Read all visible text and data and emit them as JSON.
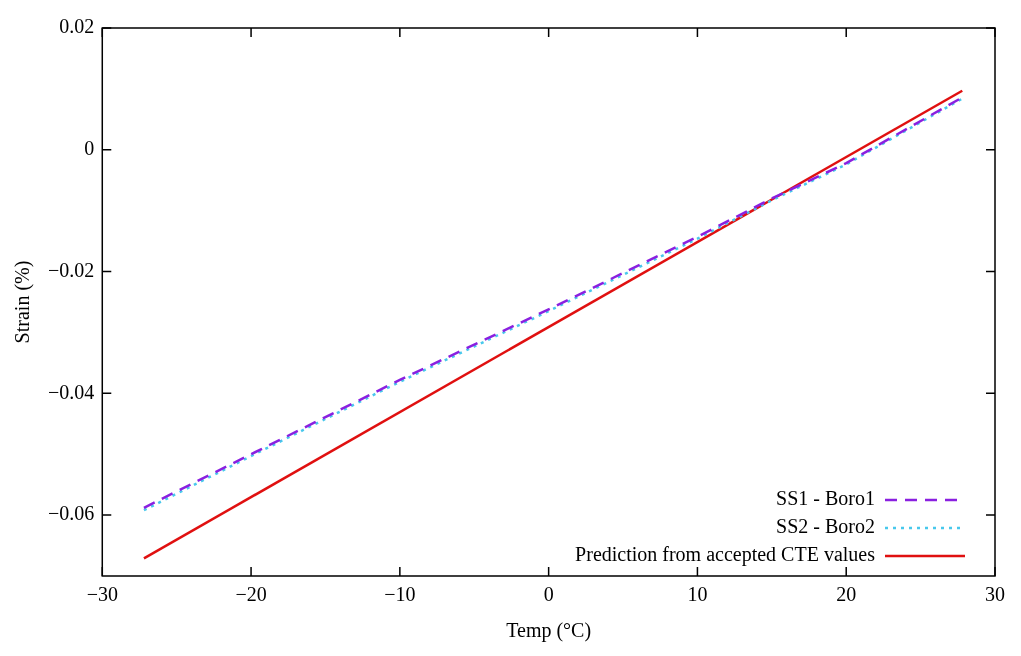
{
  "chart_data": {
    "type": "line",
    "xlabel": "Temp (°C)",
    "ylabel": "Strain (%)",
    "xlim": [
      -30,
      30
    ],
    "xticks": [
      {
        "value": -30,
        "label": "−30"
      },
      {
        "value": -20,
        "label": "−20"
      },
      {
        "value": -10,
        "label": "−10"
      },
      0,
      10,
      20,
      30
    ],
    "ylim": [
      -0.07,
      0.02
    ],
    "yticks": [
      {
        "value": -0.06,
        "label": "−0.06"
      },
      {
        "value": -0.04,
        "label": "−0.04"
      },
      {
        "value": -0.02,
        "label": "−0.02"
      },
      0,
      0.02
    ],
    "grid": false,
    "legend": "bottom right",
    "marker": "none",
    "series": [
      {
        "name": "SS1 - Boro1",
        "color": "#8a20e0",
        "line_style": "dashed",
        "x": [
          -27.2,
          -20,
          -10,
          0,
          10,
          15,
          20,
          27.8
        ],
        "values": [
          -0.0588,
          -0.05,
          -0.0378,
          -0.0262,
          -0.0143,
          -0.008,
          -0.0022,
          0.0086
        ]
      },
      {
        "name": "SS2 - Boro2",
        "color": "#48c8ec",
        "line_style": "dotted",
        "x": [
          -27.2,
          -20,
          -10,
          0,
          10,
          15,
          20,
          27.8
        ],
        "values": [
          -0.0592,
          -0.0503,
          -0.0381,
          -0.0265,
          -0.0146,
          -0.0083,
          -0.0024,
          0.0084
        ]
      },
      {
        "name": "Prediction from accepted CTE values",
        "color": "#e01010",
        "line_style": "solid",
        "x": [
          -27.2,
          27.8
        ],
        "values": [
          -0.0671,
          0.0097
        ]
      }
    ]
  }
}
